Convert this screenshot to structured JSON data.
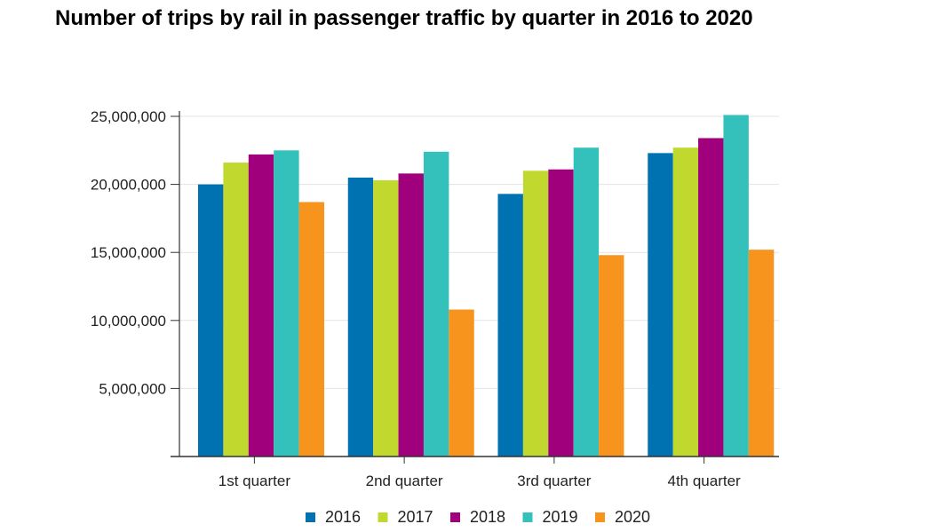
{
  "chart_data": {
    "type": "bar",
    "title": "Number of trips by rail in passenger traffic by quarter in 2016 to 2020",
    "xlabel": "",
    "ylabel": "",
    "ylim": [
      0,
      25000000
    ],
    "yticks": [
      5000000,
      10000000,
      15000000,
      20000000,
      25000000
    ],
    "ytick_labels": [
      "5,000,000",
      "10,000,000",
      "15,000,000",
      "20,000,000",
      "25,000,000"
    ],
    "categories": [
      "1st quarter",
      "2nd quarter",
      "3rd quarter",
      "4th quarter"
    ],
    "grid": true,
    "legend_position": "bottom",
    "series": [
      {
        "name": "2016",
        "color": "#0072b2",
        "values": [
          20000000,
          20500000,
          19300000,
          22300000
        ]
      },
      {
        "name": "2017",
        "color": "#c1d82f",
        "values": [
          21600000,
          20300000,
          21000000,
          22700000
        ]
      },
      {
        "name": "2018",
        "color": "#a1007d",
        "values": [
          22200000,
          20800000,
          21100000,
          23400000
        ]
      },
      {
        "name": "2019",
        "color": "#35c1bb",
        "values": [
          22500000,
          22400000,
          22700000,
          25100000
        ]
      },
      {
        "name": "2020",
        "color": "#f7941d",
        "values": [
          18700000,
          10800000,
          14800000,
          15200000
        ]
      }
    ]
  }
}
